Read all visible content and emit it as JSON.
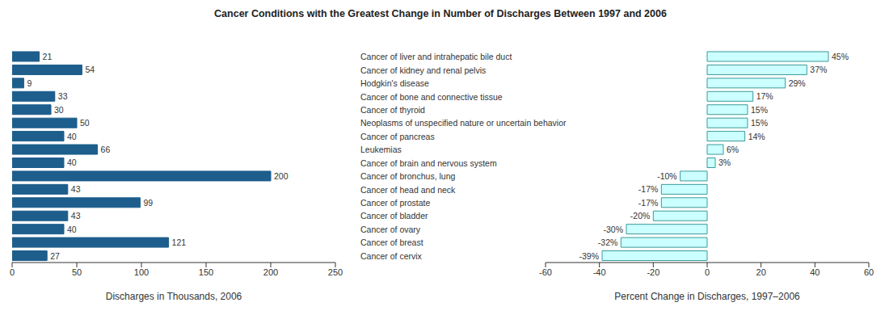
{
  "chart_data": [
    {
      "type": "bar",
      "orientation": "horizontal",
      "title": "Cancer Conditions with the Greatest Change in Number of Discharges Between 1997 and 2006",
      "x_label": "Discharges in Thousands, 2006",
      "categories": [
        null,
        null,
        null,
        null,
        null,
        null,
        null,
        null,
        null,
        null,
        null,
        null,
        null,
        null,
        null,
        null
      ],
      "values": [
        21,
        54,
        9,
        33,
        30,
        50,
        40,
        66,
        40,
        200,
        43,
        99,
        43,
        40,
        121,
        27
      ],
      "color": "#1d5e8c",
      "xlim": [
        0,
        250
      ],
      "xticks": [
        0,
        50,
        100,
        150,
        200,
        250
      ],
      "data_labels": true,
      "tick_labels": "x"
    },
    {
      "type": "bar",
      "orientation": "horizontal",
      "x_label": "Percent Change in Discharges, 1997–2006",
      "categories": [
        "Cancer of liver and intrahepatic bile duct",
        "Cancer of kidney and renal pelvis",
        "Hodgkin's disease",
        "Cancer of bone and connective tissue",
        "Cancer of thyroid",
        "Neoplasms of unspecified nature or uncertain behavior",
        "Cancer of pancreas",
        "Leukemias",
        "Cancer of brain and nervous system",
        "Cancer of bronchus, lung",
        "Cancer of head and neck",
        "Cancer of prostate",
        "Cancer of bladder",
        "Cancer of ovary",
        "Cancer of breast",
        "Cancer of cervix"
      ],
      "values": [
        45,
        37,
        29,
        17,
        15,
        15,
        14,
        6,
        3,
        -10,
        -17,
        -17,
        -20,
        -30,
        -32,
        -39
      ],
      "value_labels": [
        "45%",
        "37%",
        "29%",
        "17%",
        "15%",
        "15%",
        "14%",
        "6%",
        "3%",
        "-10%",
        "-17%",
        "-17%",
        "-20%",
        "-30%",
        "-32%",
        "-39%"
      ],
      "color": "#ccffff",
      "xlim": [
        -60,
        60
      ],
      "xticks": [
        -60,
        -40,
        -20,
        0,
        20,
        40,
        60
      ],
      "data_labels": true
    }
  ]
}
